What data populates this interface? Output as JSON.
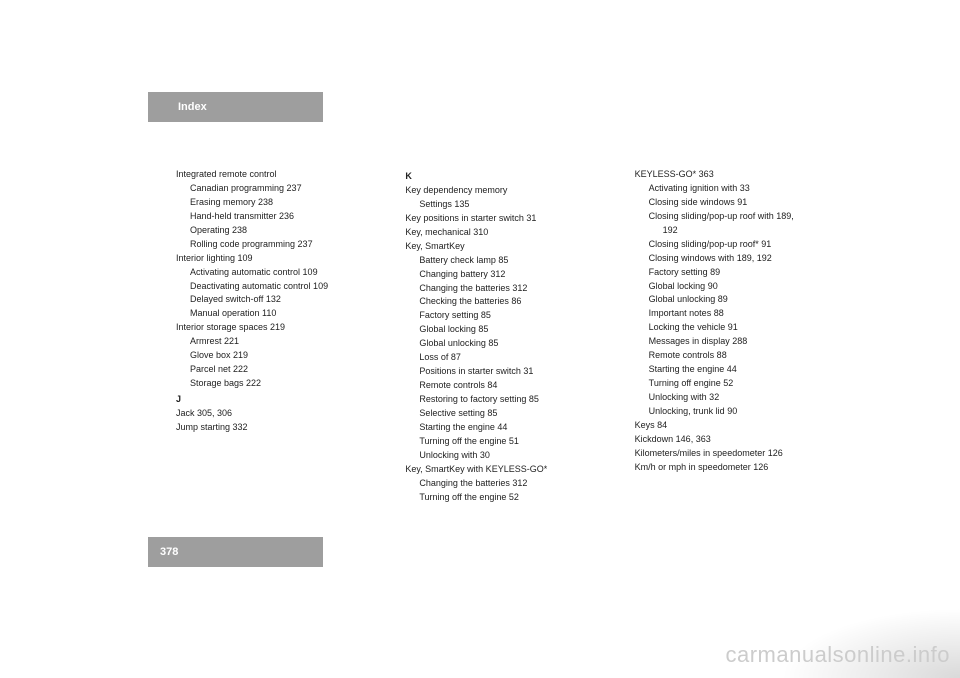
{
  "header": {
    "title": "Index"
  },
  "page_number": "378",
  "watermark": "carmanualsonline.info",
  "columns": [
    {
      "entries": [
        {
          "text": "Integrated remote control",
          "level": 0
        },
        {
          "text": "Canadian programming 237",
          "level": 1
        },
        {
          "text": "Erasing memory 238",
          "level": 1
        },
        {
          "text": "Hand-held transmitter 236",
          "level": 1
        },
        {
          "text": "Operating 238",
          "level": 1
        },
        {
          "text": "Rolling code programming 237",
          "level": 1
        },
        {
          "text": "Interior lighting 109",
          "level": 0
        },
        {
          "text": "Activating automatic control 109",
          "level": 1
        },
        {
          "text": "Deactivating automatic control 109",
          "level": 1
        },
        {
          "text": "Delayed switch-off 132",
          "level": 1
        },
        {
          "text": "Manual operation 110",
          "level": 1
        },
        {
          "text": "Interior storage spaces 219",
          "level": 0
        },
        {
          "text": "Armrest 221",
          "level": 1
        },
        {
          "text": "Glove box 219",
          "level": 1
        },
        {
          "text": "Parcel net 222",
          "level": 1
        },
        {
          "text": "Storage bags 222",
          "level": 1
        },
        {
          "text": "J",
          "level": 0,
          "section": true
        },
        {
          "text": "Jack 305, 306",
          "level": 0
        },
        {
          "text": "Jump starting 332",
          "level": 0
        }
      ]
    },
    {
      "entries": [
        {
          "text": "K",
          "level": 0,
          "section": true
        },
        {
          "text": "Key dependency memory",
          "level": 0
        },
        {
          "text": "Settings 135",
          "level": 1
        },
        {
          "text": "Key positions in starter switch 31",
          "level": 0
        },
        {
          "text": "Key, mechanical 310",
          "level": 0
        },
        {
          "text": "Key, SmartKey",
          "level": 0
        },
        {
          "text": "Battery check lamp 85",
          "level": 1
        },
        {
          "text": "Changing battery 312",
          "level": 1
        },
        {
          "text": "Changing the batteries 312",
          "level": 1
        },
        {
          "text": "Checking the batteries 86",
          "level": 1
        },
        {
          "text": "Factory setting 85",
          "level": 1
        },
        {
          "text": "Global locking 85",
          "level": 1
        },
        {
          "text": "Global unlocking 85",
          "level": 1
        },
        {
          "text": "Loss of 87",
          "level": 1
        },
        {
          "text": "Positions in starter switch 31",
          "level": 1
        },
        {
          "text": "Remote controls 84",
          "level": 1
        },
        {
          "text": "Restoring to factory setting 85",
          "level": 1
        },
        {
          "text": "Selective setting 85",
          "level": 1
        },
        {
          "text": "Starting the engine 44",
          "level": 1
        },
        {
          "text": "Turning off the engine 51",
          "level": 1
        },
        {
          "text": "Unlocking with 30",
          "level": 1
        },
        {
          "text": "Key, SmartKey with KEYLESS-GO*",
          "level": 0
        },
        {
          "text": "Changing the batteries 312",
          "level": 1
        },
        {
          "text": "Turning off the engine 52",
          "level": 1
        }
      ]
    },
    {
      "entries": [
        {
          "text": "KEYLESS-GO* 363",
          "level": 0
        },
        {
          "text": "Activating ignition with 33",
          "level": 1
        },
        {
          "text": "Closing side windows 91",
          "level": 1
        },
        {
          "text": "Closing sliding/pop-up roof with 189,",
          "level": 1
        },
        {
          "text": "192",
          "level": 2
        },
        {
          "text": "Closing sliding/pop-up roof* 91",
          "level": 1
        },
        {
          "text": "Closing windows with 189, 192",
          "level": 1
        },
        {
          "text": "Factory setting 89",
          "level": 1
        },
        {
          "text": "Global locking 90",
          "level": 1
        },
        {
          "text": "Global unlocking 89",
          "level": 1
        },
        {
          "text": "Important notes 88",
          "level": 1
        },
        {
          "text": "Locking the vehicle 91",
          "level": 1
        },
        {
          "text": "Messages in display 288",
          "level": 1
        },
        {
          "text": "Remote controls 88",
          "level": 1
        },
        {
          "text": "Starting the engine 44",
          "level": 1
        },
        {
          "text": "Turning off engine 52",
          "level": 1
        },
        {
          "text": "Unlocking with 32",
          "level": 1
        },
        {
          "text": "Unlocking, trunk lid 90",
          "level": 1
        },
        {
          "text": "Keys 84",
          "level": 0
        },
        {
          "text": "Kickdown 146, 363",
          "level": 0
        },
        {
          "text": "Kilometers/miles in speedometer 126",
          "level": 0
        },
        {
          "text": "Km/h or mph in speedometer 126",
          "level": 0
        }
      ]
    }
  ]
}
